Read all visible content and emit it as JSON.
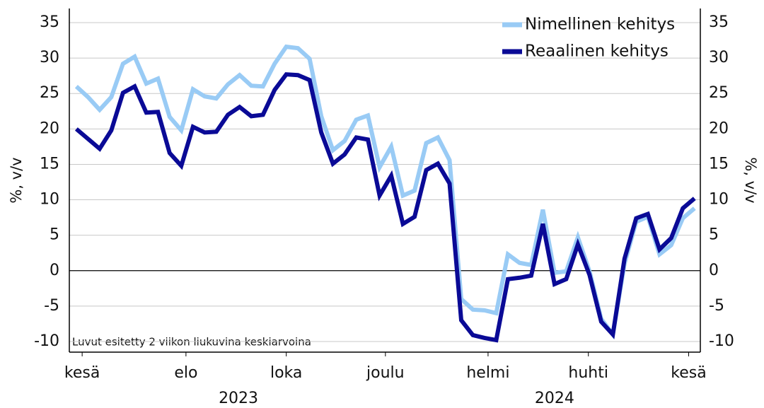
{
  "chart_data": {
    "type": "line",
    "y_label": "%, v/v",
    "y2_label": "%, v/v",
    "annotation": "Luvut esitetty 2 viikon liukuvina keskiarvoina",
    "x": [
      0,
      1,
      2,
      3,
      4,
      5,
      6,
      7,
      8,
      9,
      10,
      11,
      12,
      13,
      14,
      15,
      16,
      17,
      18,
      19,
      20,
      21,
      22,
      23,
      24,
      25,
      26,
      27,
      28,
      29,
      30,
      31,
      32,
      33,
      34,
      35,
      36,
      37,
      38,
      39,
      40,
      41,
      42,
      43,
      44,
      45,
      46,
      47,
      48,
      49,
      50,
      51,
      52,
      53
    ],
    "xlim": [
      -0.6,
      53.5
    ],
    "xticks": [
      {
        "value": 0.5,
        "label": "kesä"
      },
      {
        "value": 9.4,
        "label": "elo"
      },
      {
        "value": 18,
        "label": "loka"
      },
      {
        "value": 26.5,
        "label": "joulu"
      },
      {
        "value": 35.3,
        "label": "helmi"
      },
      {
        "value": 43.9,
        "label": "huhti"
      },
      {
        "value": 52.5,
        "label": "kesä"
      }
    ],
    "year_labels": [
      {
        "value": 13.9,
        "label": "2023"
      },
      {
        "value": 41,
        "label": "2024"
      }
    ],
    "ylim": [
      -11.5,
      37
    ],
    "yticks": [
      -10,
      -5,
      0,
      5,
      10,
      15,
      20,
      25,
      30,
      35
    ],
    "y2lim": [
      -11.5,
      37
    ],
    "y2ticks": [
      -10,
      -5,
      0,
      5,
      10,
      15,
      20,
      25,
      30,
      35
    ],
    "grid": true,
    "legend": "upper right",
    "series": [
      {
        "name": "Nimellinen kehitys",
        "color": "#99cbf5",
        "values": [
          26,
          24.5,
          22.7,
          24.5,
          29.2,
          30.2,
          26.4,
          27.1,
          21.7,
          19.8,
          25.6,
          24.6,
          24.3,
          26.3,
          27.6,
          26.1,
          26.0,
          29.2,
          31.6,
          31.4,
          29.9,
          21.8,
          17.0,
          18.3,
          21.3,
          21.9,
          14.6,
          17.5,
          10.6,
          11.3,
          18.0,
          18.8,
          15.6,
          -4,
          -5.5,
          -5.6,
          -6,
          2.3,
          1.1,
          0.8,
          8.6,
          -0.3,
          -0.1,
          4.7,
          -0.1,
          -6.8,
          -9,
          1,
          6.9,
          7.6,
          2.3,
          3.6,
          7.4,
          8.8
        ]
      },
      {
        "name": "Reaalinen kehitys",
        "color": "#0a0a96",
        "values": [
          20.0,
          18.6,
          17.2,
          19.8,
          25.1,
          26.0,
          22.3,
          22.4,
          16.6,
          14.8,
          20.3,
          19.5,
          19.6,
          22.0,
          23.1,
          21.8,
          22.0,
          25.5,
          27.7,
          27.6,
          26.9,
          19.5,
          15.1,
          16.4,
          18.8,
          18.5,
          10.6,
          13.4,
          6.6,
          7.6,
          14.2,
          15.1,
          12.3,
          -7,
          -9.1,
          -9.5,
          -9.8,
          -1.2,
          -1,
          -0.7,
          6.6,
          -1.9,
          -1.2,
          3.7,
          -0.6,
          -7.2,
          -9,
          1.7,
          7.4,
          8.0,
          3,
          4.6,
          8.8,
          10.2
        ]
      }
    ]
  }
}
